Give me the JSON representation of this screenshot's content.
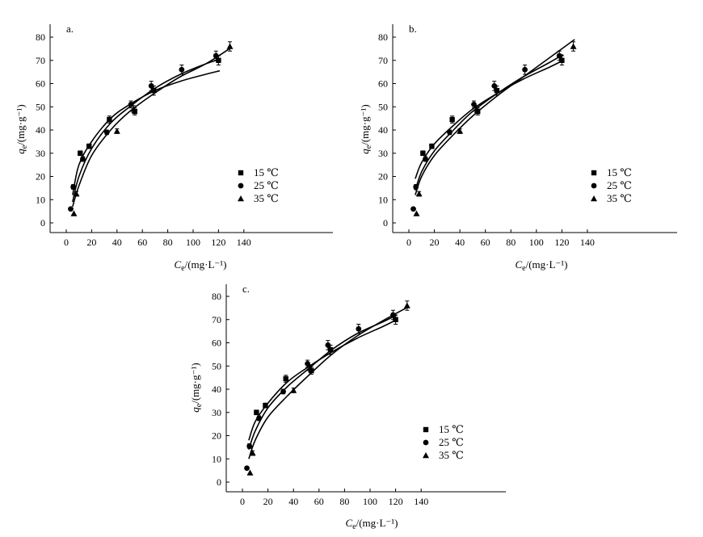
{
  "chart_data": [
    {
      "type": "scatter",
      "panel_label": "a.",
      "xlabel": "C_e/(mg·L⁻¹)",
      "ylabel": "q_e/(mg·g⁻¹)",
      "xlim": [
        -10,
        150
      ],
      "ylim": [
        -4,
        82
      ],
      "x_ticks": [
        0,
        20,
        40,
        60,
        80,
        100,
        120,
        140
      ],
      "y_ticks": [
        0,
        10,
        20,
        30,
        40,
        50,
        60,
        70,
        80
      ],
      "legend_position": "lower-right",
      "series": [
        {
          "name": "15 ℃",
          "marker": "square",
          "x": [
            11,
            18,
            34,
            54,
            69,
            120
          ],
          "y": [
            30,
            33,
            44.5,
            48,
            57,
            70
          ],
          "err": [
            1,
            1,
            1.5,
            1.5,
            2,
            2
          ]
        },
        {
          "name": "25 ℃",
          "marker": "circle",
          "x": [
            3.5,
            5.5,
            13,
            32,
            51,
            67,
            91,
            118
          ],
          "y": [
            6,
            15.5,
            27.5,
            39,
            51,
            59,
            66,
            72
          ],
          "err": [
            0.5,
            1,
            1,
            1,
            1.5,
            2,
            2,
            2
          ]
        },
        {
          "name": "35 ℃",
          "marker": "triangle",
          "x": [
            6,
            8,
            40,
            53,
            129
          ],
          "y": [
            4,
            12.5,
            39.5,
            49,
            76
          ],
          "err": [
            0.5,
            1,
            1,
            1.5,
            2
          ]
        }
      ],
      "fits": [
        {
          "x": [
            5,
            10,
            20,
            35,
            50,
            70,
            90,
            110,
            121
          ],
          "y": [
            12,
            25,
            35,
            45,
            51,
            57,
            61,
            64,
            65.5
          ]
        },
        {
          "x": [
            5,
            10,
            20,
            35,
            50,
            70,
            90,
            110,
            121
          ],
          "y": [
            9,
            20,
            32,
            43,
            50,
            58,
            64,
            68.5,
            70.5
          ]
        },
        {
          "x": [
            5,
            10,
            20,
            35,
            50,
            70,
            90,
            110,
            130
          ],
          "y": [
            7,
            16,
            29,
            40,
            48,
            56,
            63,
            68.5,
            75.5
          ]
        }
      ]
    },
    {
      "type": "scatter",
      "panel_label": "b.",
      "xlabel": "C_e/(mg·L⁻¹)",
      "ylabel": "q_e/(mg·g⁻¹)",
      "xlim": [
        -10,
        150
      ],
      "ylim": [
        -4,
        82
      ],
      "x_ticks": [
        0,
        20,
        40,
        60,
        80,
        100,
        120,
        140
      ],
      "y_ticks": [
        0,
        10,
        20,
        30,
        40,
        50,
        60,
        70,
        80
      ],
      "legend_position": "lower-right",
      "series": [
        {
          "name": "15 ℃",
          "marker": "square",
          "x": [
            11,
            18,
            34,
            54,
            69,
            120
          ],
          "y": [
            30,
            33,
            44.5,
            48,
            57,
            70
          ],
          "err": [
            1,
            1,
            1.5,
            1.5,
            2,
            2
          ]
        },
        {
          "name": "25 ℃",
          "marker": "circle",
          "x": [
            3.5,
            5.5,
            13,
            32,
            51,
            67,
            91,
            118
          ],
          "y": [
            6,
            15.5,
            27.5,
            39,
            51,
            59,
            66,
            72
          ],
          "err": [
            0.5,
            1,
            1,
            1,
            1.5,
            2,
            2,
            2
          ]
        },
        {
          "name": "35 ℃",
          "marker": "triangle",
          "x": [
            6,
            8,
            40,
            53,
            129
          ],
          "y": [
            4,
            12.5,
            39.5,
            49,
            76
          ],
          "err": [
            0.5,
            1,
            1,
            1.5,
            2
          ]
        }
      ],
      "fits": [
        {
          "x": [
            5,
            10,
            20,
            35,
            50,
            70,
            90,
            110,
            121
          ],
          "y": [
            19,
            26,
            34,
            42,
            49,
            56,
            62,
            67,
            70
          ]
        },
        {
          "x": [
            5,
            10,
            20,
            35,
            50,
            70,
            90,
            110,
            121
          ],
          "y": [
            14,
            22,
            31,
            40,
            48,
            56,
            63,
            69,
            72.5
          ]
        },
        {
          "x": [
            5,
            10,
            20,
            35,
            50,
            70,
            90,
            110,
            130
          ],
          "y": [
            12,
            20,
            29,
            38,
            46,
            55,
            63,
            71,
            79
          ]
        }
      ]
    },
    {
      "type": "scatter",
      "panel_label": "c.",
      "xlabel": "C_e/(mg·L⁻¹)",
      "ylabel": "q_e/(mg·g⁻¹)",
      "xlim": [
        -10,
        150
      ],
      "ylim": [
        -4,
        82
      ],
      "x_ticks": [
        0,
        20,
        40,
        60,
        80,
        100,
        120,
        140
      ],
      "y_ticks": [
        0,
        10,
        20,
        30,
        40,
        50,
        60,
        70,
        80
      ],
      "legend_position": "lower-right",
      "series": [
        {
          "name": "15 ℃",
          "marker": "square",
          "x": [
            11,
            18,
            34,
            54,
            69,
            120
          ],
          "y": [
            30,
            33,
            44.5,
            48,
            57,
            70
          ],
          "err": [
            1,
            1,
            1.5,
            1.5,
            2,
            2
          ]
        },
        {
          "name": "25 ℃",
          "marker": "circle",
          "x": [
            3.5,
            5.5,
            13,
            32,
            51,
            67,
            91,
            118
          ],
          "y": [
            6,
            15.5,
            27.5,
            39,
            51,
            59,
            66,
            72
          ],
          "err": [
            0.5,
            1,
            1,
            1,
            1.5,
            2,
            2,
            2
          ]
        },
        {
          "name": "35 ℃",
          "marker": "triangle",
          "x": [
            6,
            8,
            40,
            53,
            129
          ],
          "y": [
            4,
            12.5,
            39.5,
            49,
            76
          ],
          "err": [
            0.5,
            1,
            1,
            1.5,
            2
          ]
        }
      ],
      "fits": [
        {
          "x": [
            5,
            10,
            20,
            35,
            50,
            70,
            90,
            110,
            121
          ],
          "y": [
            18,
            26,
            34,
            43,
            49,
            56,
            62,
            67,
            70
          ]
        },
        {
          "x": [
            5,
            10,
            20,
            35,
            50,
            70,
            90,
            110,
            121
          ],
          "y": [
            14,
            22,
            32,
            41,
            48,
            57,
            64,
            69,
            72
          ]
        },
        {
          "x": [
            5,
            10,
            20,
            35,
            50,
            70,
            90,
            110,
            130
          ],
          "y": [
            10,
            18,
            28,
            37,
            45,
            55,
            63,
            69.5,
            75.5
          ]
        }
      ]
    }
  ]
}
